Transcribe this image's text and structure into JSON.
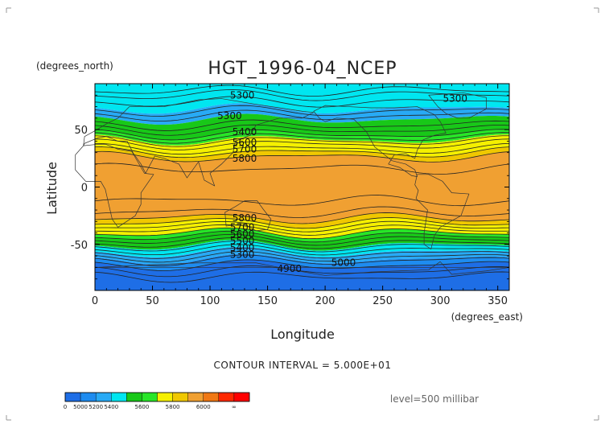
{
  "chart_data": {
    "type": "heatmap",
    "title": "HGT_1996-04_NCEP",
    "xlabel": "Longitude",
    "ylabel": "Latitude",
    "x_units": "(degrees_east)",
    "y_units": "(degrees_north)",
    "xlim": [
      0,
      360
    ],
    "ylim": [
      -90,
      90
    ],
    "x_ticks": [
      0,
      50,
      100,
      150,
      200,
      250,
      300,
      350
    ],
    "y_ticks": [
      50,
      0,
      -50
    ],
    "grid": false,
    "contour_interval_text": "CONTOUR INTERVAL = 5.000E+01",
    "level_text": "level=500 millibar",
    "contour_labels": [
      {
        "text": "5300",
        "lon": 128,
        "lat": 80
      },
      {
        "text": "5300",
        "lon": 313,
        "lat": 77
      },
      {
        "text": "5300",
        "lon": 117,
        "lat": 62
      },
      {
        "text": "5400",
        "lon": 130,
        "lat": 48
      },
      {
        "text": "5600",
        "lon": 130,
        "lat": 39
      },
      {
        "text": "5700",
        "lon": 130,
        "lat": 33
      },
      {
        "text": "5800",
        "lon": 130,
        "lat": 25
      },
      {
        "text": "5800",
        "lon": 130,
        "lat": -27
      },
      {
        "text": "5700",
        "lon": 128,
        "lat": -35
      },
      {
        "text": "5600",
        "lon": 128,
        "lat": -41
      },
      {
        "text": "5500",
        "lon": 128,
        "lat": -47
      },
      {
        "text": "5400",
        "lon": 128,
        "lat": -53
      },
      {
        "text": "5300",
        "lon": 128,
        "lat": -59
      },
      {
        "text": "4900",
        "lon": 169,
        "lat": -71
      },
      {
        "text": "5000",
        "lon": 216,
        "lat": -66
      }
    ],
    "colorbar": {
      "bins": [
        {
          "label": "0",
          "color": "#1e6ee6"
        },
        {
          "label": "5000",
          "color": "#1e8cf0"
        },
        {
          "label": "5200",
          "color": "#28aaf5"
        },
        {
          "label": "5400",
          "color": "#00e6f0"
        },
        {
          "label": "",
          "color": "#18c818"
        },
        {
          "label": "5600",
          "color": "#28e628"
        },
        {
          "label": "",
          "color": "#f5f000"
        },
        {
          "label": "5800",
          "color": "#f0c800"
        },
        {
          "label": "",
          "color": "#f0a032"
        },
        {
          "label": "6000",
          "color": "#f07814"
        },
        {
          "label": "",
          "color": "#ff2800"
        },
        {
          "label": "∞",
          "color": "#ff0000"
        }
      ]
    },
    "bands": [
      {
        "lat_top": 90,
        "lat_bottom": 68,
        "color": "#00e6f0"
      },
      {
        "lat_top": 68,
        "lat_bottom": 59,
        "color": "#28aaf5"
      },
      {
        "lat_top": 59,
        "lat_bottom": 46,
        "color": "#18c818"
      },
      {
        "lat_top": 46,
        "lat_bottom": 41,
        "color": "#28e628"
      },
      {
        "lat_top": 41,
        "lat_bottom": 30,
        "color": "#f5f000"
      },
      {
        "lat_top": 30,
        "lat_bottom": 26,
        "color": "#f0c800"
      },
      {
        "lat_top": 26,
        "lat_bottom": -27,
        "color": "#f0a032"
      },
      {
        "lat_top": -27,
        "lat_bottom": -31,
        "color": "#f0c800"
      },
      {
        "lat_top": -31,
        "lat_bottom": -40,
        "color": "#f5f000"
      },
      {
        "lat_top": -40,
        "lat_bottom": -43,
        "color": "#28e628"
      },
      {
        "lat_top": -43,
        "lat_bottom": -51,
        "color": "#18c818"
      },
      {
        "lat_top": -51,
        "lat_bottom": -57,
        "color": "#00e6f0"
      },
      {
        "lat_top": -57,
        "lat_bottom": -63,
        "color": "#28aaf5"
      },
      {
        "lat_top": -63,
        "lat_bottom": -68,
        "color": "#1e8cf0"
      },
      {
        "lat_top": -68,
        "lat_bottom": -90,
        "color": "#1e6ee6"
      }
    ]
  }
}
